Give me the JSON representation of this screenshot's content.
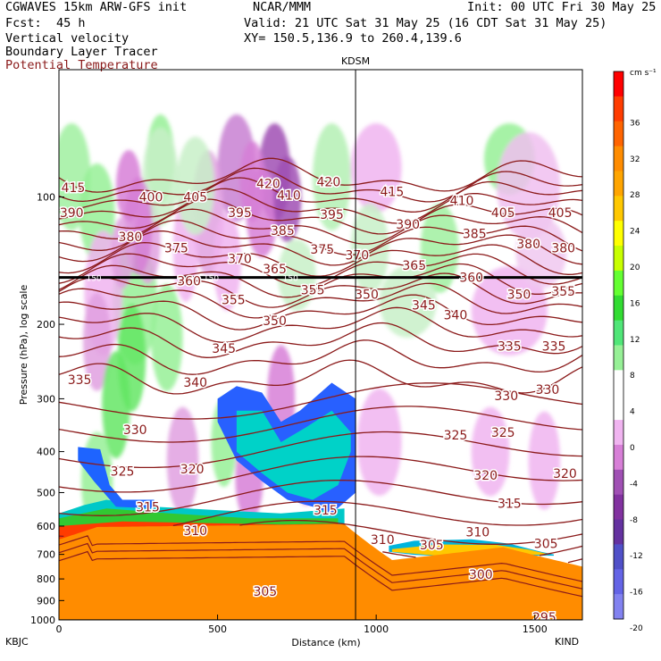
{
  "header": {
    "model": "CGWAVES 15km ARW-GFS init",
    "center": "NCAR/MMM",
    "init": "Init: 00 UTC Fri 30 May 25",
    "fcst_label": "Fcst:",
    "fcst_value": "45 h",
    "valid": "Valid: 21 UTC Sat 31 May 25 (16 CDT Sat 31 May 25)",
    "field1": "Vertical velocity",
    "field2": "Boundary Layer Tracer",
    "field3": "Potential Temperature",
    "xy": "XY= 150.5,136.9 to 260.4,139.6",
    "field3_color": "#8b1a1a"
  },
  "chart_data": {
    "type": "heatmap",
    "title": "",
    "xlabel": "Distance (km)",
    "ylabel": "Pressure (hPa), log scale",
    "xlim": [
      0,
      1650
    ],
    "ylim": [
      1000,
      50
    ],
    "y_scale": "log",
    "x_ticks": [
      "0",
      "500",
      "1000",
      "1500"
    ],
    "x_tick_values": [
      0,
      500,
      1000,
      1500
    ],
    "y_ticks": [
      "100",
      "200",
      "300",
      "400",
      "500",
      "600",
      "700",
      "800",
      "900",
      "1000"
    ],
    "y_tick_values": [
      100,
      200,
      300,
      400,
      500,
      600,
      700,
      800,
      900,
      1000
    ],
    "endpoints": {
      "left": "KBJC",
      "right": "KIND"
    },
    "marker": {
      "label": "KDSM",
      "x": 935
    },
    "colorbar": {
      "units": "cm s⁻¹",
      "labels": [
        "36",
        "32",
        "28",
        "24",
        "20",
        "16",
        "12",
        "8",
        "4",
        "0",
        "-4",
        "-8",
        "-12",
        "-16",
        "-20"
      ],
      "colors": [
        "#ff0000",
        "#ff3c00",
        "#ff6400",
        "#ff8c00",
        "#ffa500",
        "#ffc800",
        "#ffff00",
        "#c8ff00",
        "#64ff32",
        "#32dc32",
        "#50e678",
        "#96f096",
        "#ffffff",
        "#ffffff",
        "#f0b4f0",
        "#d77fd7",
        "#a050b4",
        "#8232a0",
        "#6432a0",
        "#5050c8",
        "#6464e6",
        "#8282f0"
      ]
    },
    "contour_color": "#8b1a1a",
    "tropopause_pressure": 155,
    "tropopause_label": "150",
    "isentrope_labels": [
      {
        "v": "415",
        "x": 45,
        "p": 95
      },
      {
        "v": "420",
        "x": 660,
        "p": 93
      },
      {
        "v": "420",
        "x": 850,
        "p": 92
      },
      {
        "v": "415",
        "x": 1050,
        "p": 97
      },
      {
        "v": "400",
        "x": 290,
        "p": 100
      },
      {
        "v": "405",
        "x": 430,
        "p": 100
      },
      {
        "v": "410",
        "x": 725,
        "p": 99
      },
      {
        "v": "410",
        "x": 1270,
        "p": 102
      },
      {
        "v": "405",
        "x": 1400,
        "p": 109
      },
      {
        "v": "405",
        "x": 1580,
        "p": 109
      },
      {
        "v": "390",
        "x": 40,
        "p": 109
      },
      {
        "v": "395",
        "x": 570,
        "p": 109
      },
      {
        "v": "395",
        "x": 860,
        "p": 110
      },
      {
        "v": "390",
        "x": 1100,
        "p": 116
      },
      {
        "v": "385",
        "x": 1310,
        "p": 122
      },
      {
        "v": "380",
        "x": 1480,
        "p": 129
      },
      {
        "v": "380",
        "x": 1590,
        "p": 132
      },
      {
        "v": "380",
        "x": 225,
        "p": 124
      },
      {
        "v": "385",
        "x": 705,
        "p": 120
      },
      {
        "v": "375",
        "x": 370,
        "p": 132
      },
      {
        "v": "375",
        "x": 830,
        "p": 133
      },
      {
        "v": "370",
        "x": 570,
        "p": 140
      },
      {
        "v": "370",
        "x": 940,
        "p": 137
      },
      {
        "v": "365",
        "x": 680,
        "p": 148
      },
      {
        "v": "365",
        "x": 1120,
        "p": 145
      },
      {
        "v": "360",
        "x": 410,
        "p": 158
      },
      {
        "v": "360",
        "x": 1300,
        "p": 155
      },
      {
        "v": "355",
        "x": 550,
        "p": 175
      },
      {
        "v": "355",
        "x": 800,
        "p": 166
      },
      {
        "v": "350",
        "x": 970,
        "p": 170
      },
      {
        "v": "345",
        "x": 1150,
        "p": 180
      },
      {
        "v": "350",
        "x": 1450,
        "p": 170
      },
      {
        "v": "355",
        "x": 1590,
        "p": 167
      },
      {
        "v": "350",
        "x": 680,
        "p": 196
      },
      {
        "v": "340",
        "x": 1250,
        "p": 190
      },
      {
        "v": "345",
        "x": 520,
        "p": 228
      },
      {
        "v": "335",
        "x": 1420,
        "p": 225
      },
      {
        "v": "335",
        "x": 1560,
        "p": 225
      },
      {
        "v": "335",
        "x": 65,
        "p": 270
      },
      {
        "v": "340",
        "x": 430,
        "p": 274
      },
      {
        "v": "330",
        "x": 1410,
        "p": 295
      },
      {
        "v": "330",
        "x": 1540,
        "p": 285
      },
      {
        "v": "330",
        "x": 240,
        "p": 355
      },
      {
        "v": "325",
        "x": 1250,
        "p": 365
      },
      {
        "v": "325",
        "x": 1400,
        "p": 360
      },
      {
        "v": "325",
        "x": 200,
        "p": 445
      },
      {
        "v": "320",
        "x": 420,
        "p": 440
      },
      {
        "v": "320",
        "x": 1345,
        "p": 455
      },
      {
        "v": "320",
        "x": 1595,
        "p": 450
      },
      {
        "v": "315",
        "x": 280,
        "p": 540
      },
      {
        "v": "315",
        "x": 840,
        "p": 550
      },
      {
        "v": "315",
        "x": 1420,
        "p": 530
      },
      {
        "v": "310",
        "x": 430,
        "p": 615
      },
      {
        "v": "310",
        "x": 1320,
        "p": 620
      },
      {
        "v": "310",
        "x": 1020,
        "p": 645
      },
      {
        "v": "305",
        "x": 1175,
        "p": 665
      },
      {
        "v": "305",
        "x": 1535,
        "p": 660
      },
      {
        "v": "300",
        "x": 1330,
        "p": 780
      },
      {
        "v": "305",
        "x": 650,
        "p": 855
      },
      {
        "v": "295",
        "x": 1530,
        "p": 985
      }
    ]
  }
}
